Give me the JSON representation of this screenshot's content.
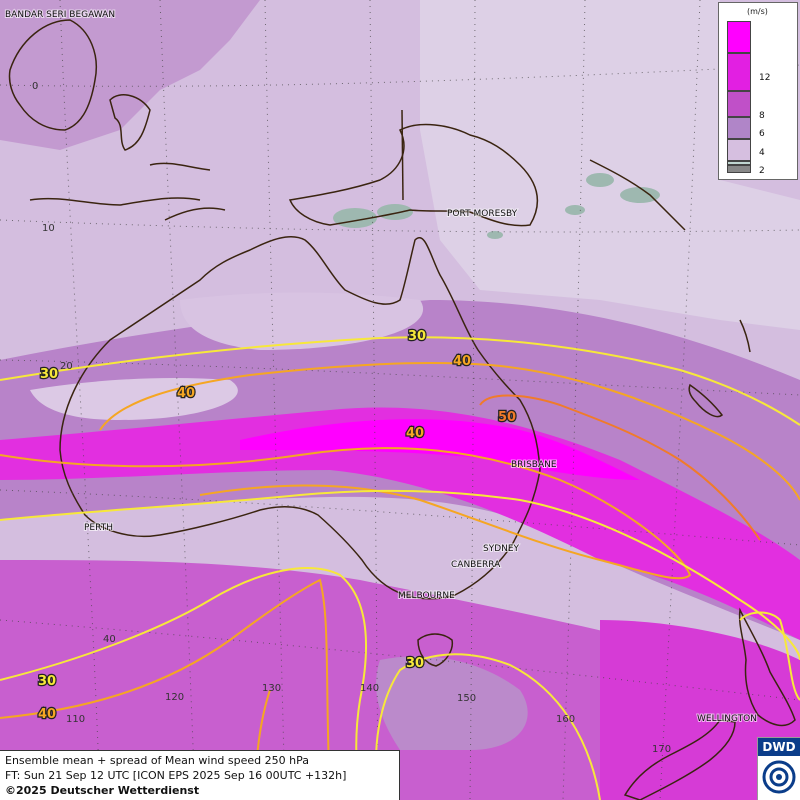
{
  "legend": {
    "unit": "(m/s)",
    "ticks": [
      "12",
      "8",
      "6",
      "4",
      "2"
    ],
    "colors": [
      "#ff00ff",
      "#e21fe2",
      "#c050c8",
      "#b085c8",
      "#d6bfe0",
      "#c0d6d0",
      "#888888"
    ]
  },
  "cities": [
    "BANDAR SERI BEGAWAN",
    "PORT MORESBY",
    "BRISBANE",
    "PERTH",
    "SYDNEY",
    "CANBERRA",
    "MELBOURNE",
    "WELLINGTON"
  ],
  "grid_labels": {
    "latitudes": [
      "0",
      "10",
      "20",
      "40"
    ],
    "longitudes": [
      "110",
      "120",
      "130",
      "140",
      "150",
      "160",
      "170"
    ]
  },
  "contour_labels": [
    "30",
    "40",
    "40",
    "50",
    "40",
    "30",
    "30",
    "40"
  ],
  "contour_colors": {
    "30": "#f7e83a",
    "40": "#f5a623",
    "50": "#f07b2a"
  },
  "caption": {
    "line1": "Ensemble mean + spread of Mean wind speed 250 hPa",
    "line2": "FT: Sun 21 Sep 12 UTC [ICON EPS 2025 Sep 16 00UTC +132h]",
    "line3": "©2025 Deutscher Wetterdienst"
  },
  "logo": {
    "text": "DWD"
  }
}
